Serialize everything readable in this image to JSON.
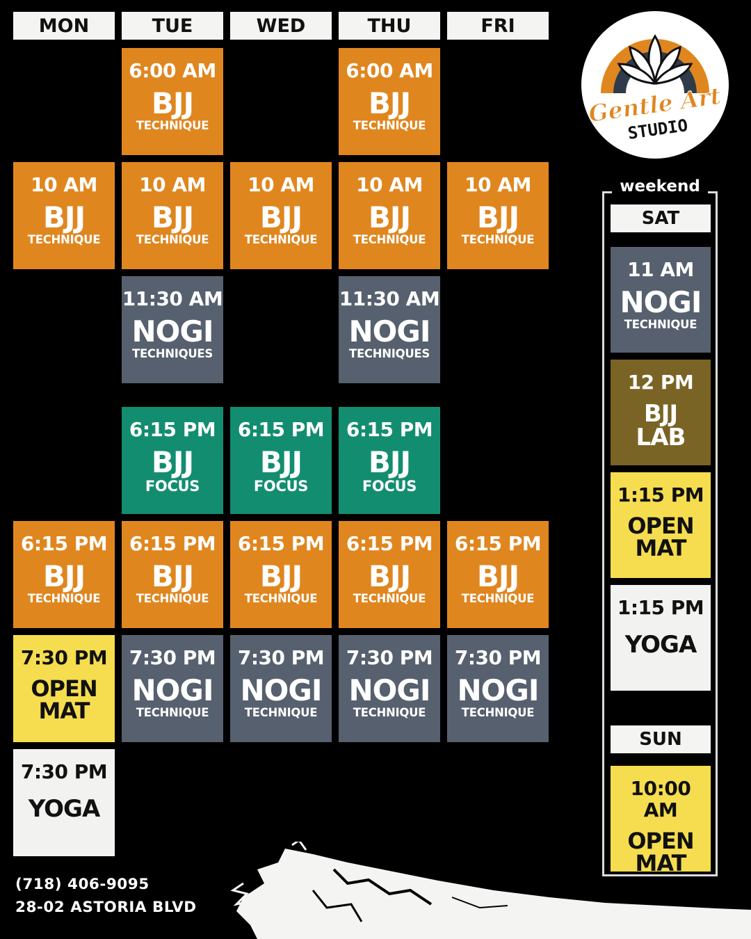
{
  "days": [
    "MON",
    "TUE",
    "WED",
    "THU",
    "FRI"
  ],
  "classes": {
    "tue_600": {
      "time": "6:00 AM",
      "name": "BJJ",
      "sub": "TECHNIQUE"
    },
    "thu_600": {
      "time": "6:00 AM",
      "name": "BJJ",
      "sub": "TECHNIQUE"
    },
    "mon_10": {
      "time": "10 AM",
      "name": "BJJ",
      "sub": "TECHNIQUE"
    },
    "tue_10": {
      "time": "10 AM",
      "name": "BJJ",
      "sub": "TECHNIQUE"
    },
    "wed_10": {
      "time": "10 AM",
      "name": "BJJ",
      "sub": "TECHNIQUE"
    },
    "thu_10": {
      "time": "10 AM",
      "name": "BJJ",
      "sub": "TECHNIQUE"
    },
    "fri_10": {
      "time": "10 AM",
      "name": "BJJ",
      "sub": "TECHNIQUE"
    },
    "tue_1130": {
      "time": "11:30 AM",
      "name": "NOGI",
      "sub": "TECHNIQUES"
    },
    "thu_1130": {
      "time": "11:30 AM",
      "name": "NOGI",
      "sub": "TECHNIQUES"
    },
    "tue_615f": {
      "time": "6:15 PM",
      "name": "BJJ",
      "sub": "FOCUS"
    },
    "wed_615f": {
      "time": "6:15 PM",
      "name": "BJJ",
      "sub": "FOCUS"
    },
    "thu_615f": {
      "time": "6:15 PM",
      "name": "BJJ",
      "sub": "FOCUS"
    },
    "mon_615": {
      "time": "6:15 PM",
      "name": "BJJ",
      "sub": "TECHNIQUE"
    },
    "tue_615": {
      "time": "6:15 PM",
      "name": "BJJ",
      "sub": "TECHNIQUE"
    },
    "wed_615": {
      "time": "6:15 PM",
      "name": "BJJ",
      "sub": "TECHNIQUE"
    },
    "thu_615": {
      "time": "6:15 PM",
      "name": "BJJ",
      "sub": "TECHNIQUE"
    },
    "fri_615": {
      "time": "6:15 PM",
      "name": "BJJ",
      "sub": "TECHNIQUE"
    },
    "mon_730_open": {
      "time": "7:30 PM",
      "name": "OPEN\nMAT"
    },
    "tue_730": {
      "time": "7:30 PM",
      "name": "NOGI",
      "sub": "TECHNIQUE"
    },
    "wed_730": {
      "time": "7:30 PM",
      "name": "NOGI",
      "sub": "TECHNIQUE"
    },
    "thu_730": {
      "time": "7:30 PM",
      "name": "NOGI",
      "sub": "TECHNIQUE"
    },
    "fri_730": {
      "time": "7:30 PM",
      "name": "NOGI",
      "sub": "TECHNIQUE"
    },
    "mon_730_yoga": {
      "time": "7:30 PM",
      "name": "YOGA"
    }
  },
  "weekend": {
    "label": "weekend",
    "sat": "SAT",
    "sun": "SUN",
    "sat_11": {
      "time": "11 AM",
      "name": "NOGI",
      "sub": "TECHNIQUE"
    },
    "sat_12": {
      "time": "12 PM",
      "name": "BJJ\nLAB"
    },
    "sat_115_open": {
      "time": "1:15 PM",
      "name": "OPEN\nMAT"
    },
    "sat_115_yoga": {
      "time": "1:15 PM",
      "name": "YOGA"
    },
    "sun_10": {
      "time": "10:00 AM",
      "name": "OPEN\nMAT"
    }
  },
  "logo": {
    "line1": "Gentle Art",
    "line2": "STUDIO"
  },
  "contact": {
    "phone": "(718) 406-9095",
    "address": "28-02 ASTORIA BLVD"
  },
  "colors": {
    "orange": "#e0861f",
    "slate": "#56606e",
    "green": "#138d70",
    "yellow": "#f6dd4f",
    "white": "#f2f2f0",
    "olive": "#7a6425"
  }
}
